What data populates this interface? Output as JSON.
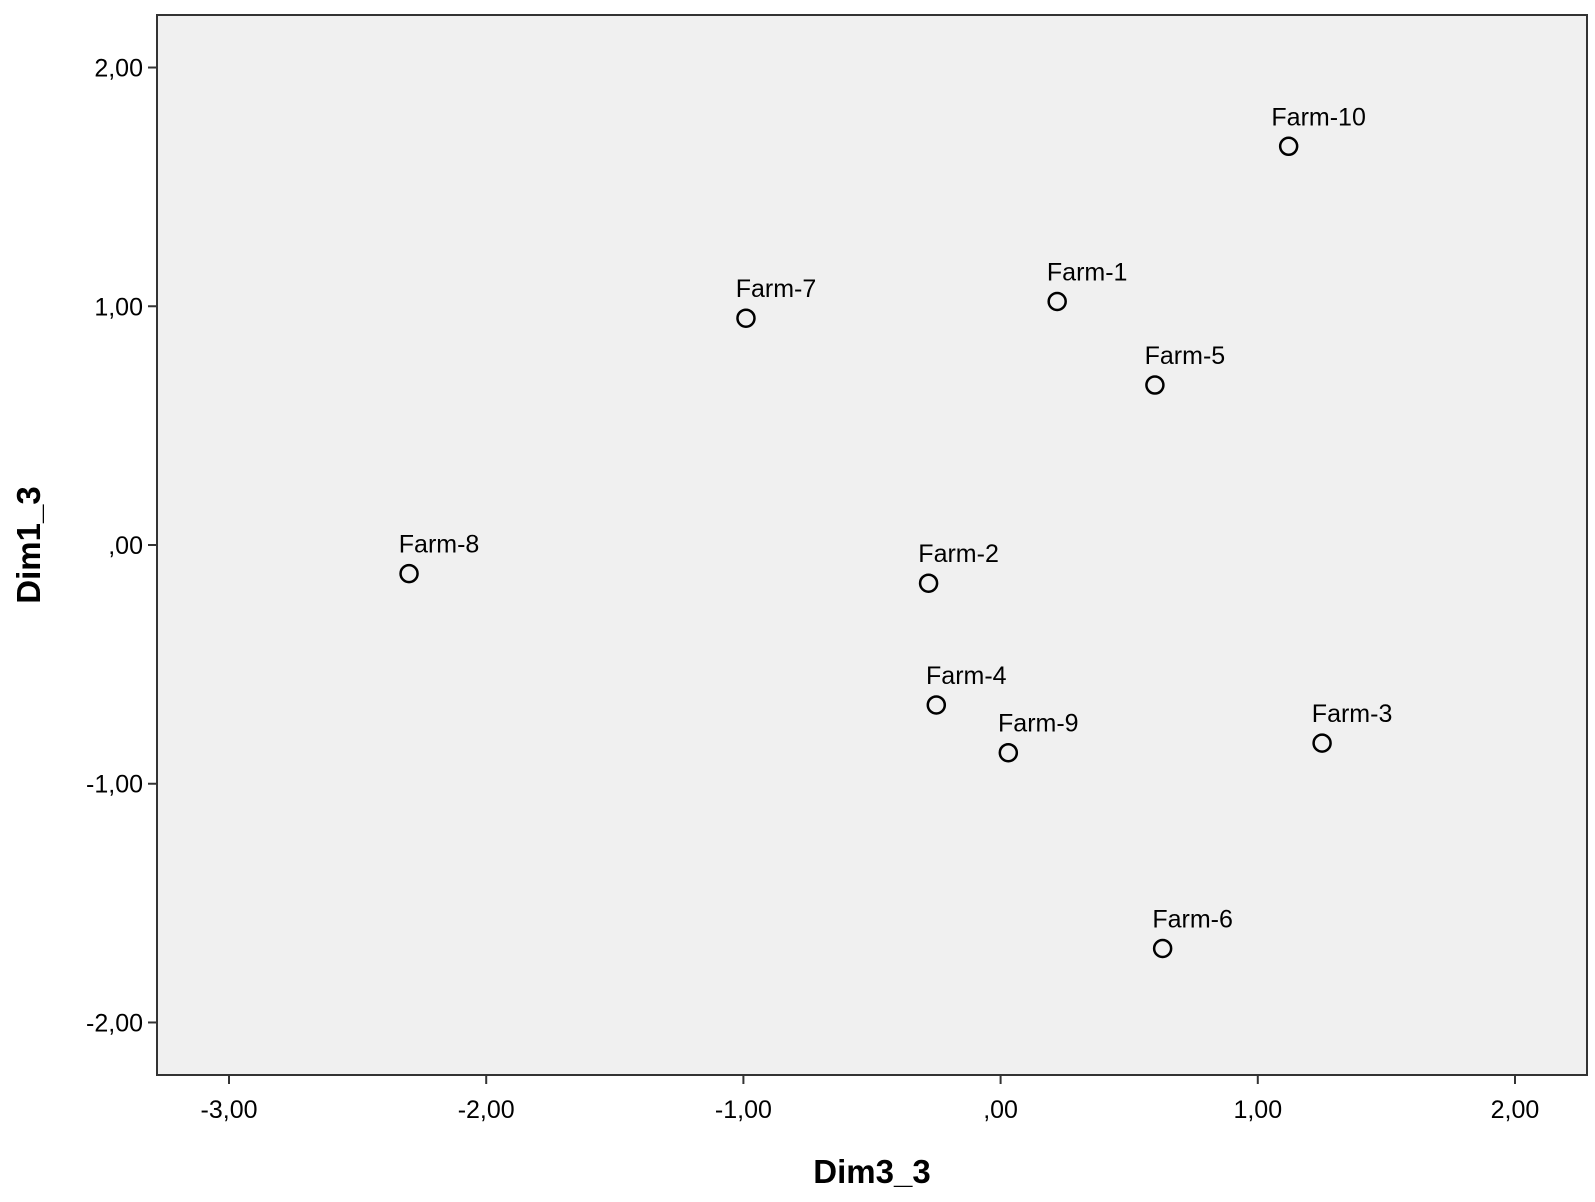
{
  "chart_data": {
    "type": "scatter",
    "title": "",
    "xlabel": "Dim3_3",
    "ylabel": "Dim1_3",
    "xlim": [
      -3.28,
      2.28
    ],
    "ylim": [
      -2.22,
      2.22
    ],
    "xticks": [
      {
        "value": -3,
        "label": "-3,00"
      },
      {
        "value": -2,
        "label": "-2,00"
      },
      {
        "value": -1,
        "label": "-1,00"
      },
      {
        "value": 0,
        "label": ",00"
      },
      {
        "value": 1,
        "label": "1,00"
      },
      {
        "value": 2,
        "label": "2,00"
      }
    ],
    "yticks": [
      {
        "value": 2,
        "label": "2,00"
      },
      {
        "value": 1,
        "label": "1,00"
      },
      {
        "value": 0,
        "label": ",00"
      },
      {
        "value": -1,
        "label": "-1,00"
      },
      {
        "value": -2,
        "label": "-2,00"
      }
    ],
    "grid": false,
    "legend": "none",
    "plot_background": "#f0f0f0",
    "marker_color": "#000000",
    "marker": "open-circle",
    "points": [
      {
        "label": "Farm-10",
        "x": 1.12,
        "y": 1.67
      },
      {
        "label": "Farm-7",
        "x": -0.99,
        "y": 0.95
      },
      {
        "label": "Farm-1",
        "x": 0.22,
        "y": 1.02
      },
      {
        "label": "Farm-5",
        "x": 0.6,
        "y": 0.67
      },
      {
        "label": "Farm-8",
        "x": -2.3,
        "y": -0.12
      },
      {
        "label": "Farm-2",
        "x": -0.28,
        "y": -0.16
      },
      {
        "label": "Farm-4",
        "x": -0.25,
        "y": -0.67
      },
      {
        "label": "Farm-9",
        "x": 0.03,
        "y": -0.87
      },
      {
        "label": "Farm-3",
        "x": 1.25,
        "y": -0.83
      },
      {
        "label": "Farm-6",
        "x": 0.63,
        "y": -1.69
      }
    ]
  }
}
